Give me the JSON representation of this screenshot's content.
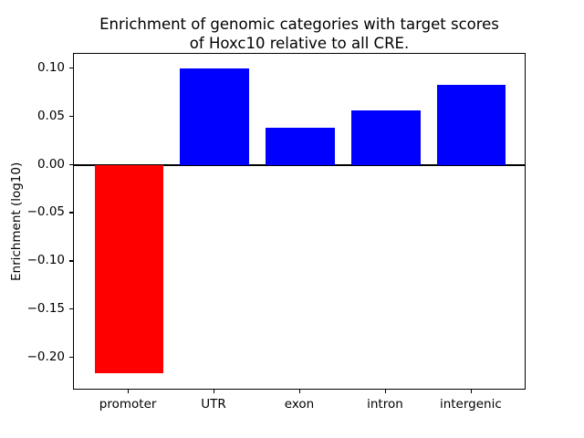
{
  "figure": {
    "background": "#ffffff",
    "frame_color": "#000000"
  },
  "chart_data": {
    "type": "bar",
    "title": "Enrichment of genomic categories with target scores\nof Hoxc10 relative to all CRE.",
    "xlabel": "",
    "ylabel": "Enrichment (log10)",
    "categories": [
      "promoter",
      "UTR",
      "exon",
      "intron",
      "intergenic"
    ],
    "values": [
      -0.216,
      0.1,
      0.038,
      0.056,
      0.083
    ],
    "bar_colors": [
      "#ff0000",
      "#0000ff",
      "#0000ff",
      "#0000ff",
      "#0000ff"
    ],
    "bar_width": 0.8,
    "ylim": [
      -0.234,
      0.115
    ],
    "xlim": [
      -0.64,
      4.64
    ],
    "yticks": [
      0.1,
      0.05,
      0.0,
      -0.05,
      -0.1,
      -0.15,
      -0.2
    ],
    "grid": false,
    "legend_position": "none",
    "zero_line": true
  }
}
